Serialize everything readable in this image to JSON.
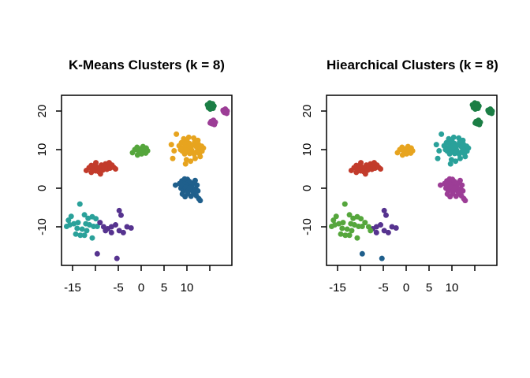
{
  "canvas": {
    "background": "#ffffff"
  },
  "palette": {
    "red": "#c23b2b",
    "blue": "#1f5f8c",
    "green": "#55a63c",
    "magenta": "#9c3d96",
    "gold": "#e7a41f",
    "teal": "#2aa19a",
    "darkgreen": "#1b7e45",
    "indigo": "#56338f"
  },
  "chart_data": {
    "type": "scatter",
    "layout": "two side-by-side scatter plots sharing identical points; colors differ by clustering method; full box frame; ticks on bottom and left only; y tick labels rotated 90",
    "xlim": [
      -17.4,
      19.8
    ],
    "ylim": [
      -20.1,
      24.0
    ],
    "x_ticks": [
      -15,
      -10,
      -5,
      0,
      5,
      10,
      15
    ],
    "x_tick_labels": [
      "-15",
      "",
      "-5",
      "0",
      "5",
      "10",
      ""
    ],
    "y_ticks": [
      -10,
      0,
      10,
      20
    ],
    "y_tick_labels": [
      "-10",
      "0",
      "10",
      "20"
    ],
    "charts": [
      {
        "title": "K-Means Clusters (k = 8)",
        "cluster_field": "km"
      },
      {
        "title": "Hiearchical Clusters (k = 8)",
        "cluster_field": "hc"
      }
    ],
    "clusters": [
      {
        "name": "upper-left-red",
        "km": "red",
        "hc": "red",
        "points": [
          [
            -12.0,
            4.6
          ],
          [
            -11.4,
            5.3
          ],
          [
            -10.9,
            4.1
          ],
          [
            -10.9,
            5.9
          ],
          [
            -10.5,
            5.0
          ],
          [
            -10.2,
            5.9
          ],
          [
            -10.0,
            4.5
          ],
          [
            -9.9,
            6.6
          ],
          [
            -9.6,
            5.4
          ],
          [
            -9.3,
            4.3
          ],
          [
            -9.0,
            5.1
          ],
          [
            -8.9,
            3.7
          ],
          [
            -8.7,
            6.0
          ],
          [
            -8.4,
            4.7
          ],
          [
            -8.1,
            5.5
          ],
          [
            -7.8,
            6.3
          ],
          [
            -7.5,
            4.9
          ],
          [
            -7.2,
            5.7
          ],
          [
            -7.0,
            6.6
          ],
          [
            -6.8,
            5.2
          ],
          [
            -6.4,
            6.0
          ],
          [
            -6.0,
            5.4
          ],
          [
            -5.6,
            5.0
          ]
        ]
      },
      {
        "name": "bottom-left-west",
        "km": "teal",
        "hc": "green",
        "points": [
          [
            -13.4,
            -4.1
          ],
          [
            -15.3,
            -7.3
          ],
          [
            -12.4,
            -6.9
          ],
          [
            -11.6,
            -7.8
          ],
          [
            -10.7,
            -7.4
          ],
          [
            -9.9,
            -7.9
          ],
          [
            -16.3,
            -9.9
          ],
          [
            -15.6,
            -9.5
          ],
          [
            -14.7,
            -9.2
          ],
          [
            -13.8,
            -8.9
          ],
          [
            -12.1,
            -9.2
          ],
          [
            -11.3,
            -9.5
          ],
          [
            -10.4,
            -9.9
          ],
          [
            -9.6,
            -9.9
          ],
          [
            -14.3,
            -11.9
          ],
          [
            -13.3,
            -12.2
          ],
          [
            -12.4,
            -12.2
          ],
          [
            -10.7,
            -12.9
          ],
          [
            -15.9,
            -8.3
          ],
          [
            -12.9,
            -10.6
          ],
          [
            -11.9,
            -11.0
          ],
          [
            -14.0,
            -10.4
          ]
        ]
      },
      {
        "name": "bottom-left-east",
        "km": "indigo",
        "hc": "indigo",
        "points": [
          [
            -4.8,
            -5.8
          ],
          [
            -4.4,
            -7.0
          ],
          [
            -7.3,
            -10.5
          ],
          [
            -6.5,
            -10.0
          ],
          [
            -5.6,
            -9.5
          ],
          [
            -4.8,
            -11.0
          ],
          [
            -3.9,
            -11.5
          ],
          [
            -3.1,
            -10.0
          ],
          [
            -2.2,
            -10.3
          ],
          [
            -6.5,
            -11.5
          ]
        ]
      },
      {
        "name": "bottom-left-boundary",
        "km": "indigo",
        "hc": "green",
        "points": [
          [
            -9.0,
            -8.9
          ],
          [
            -8.2,
            -10.0
          ],
          [
            -7.8,
            -11.0
          ]
        ]
      },
      {
        "name": "bottom-left-outliers",
        "km": "indigo",
        "hc": "blue",
        "points": [
          [
            -9.6,
            -17.0
          ],
          [
            -5.3,
            -18.2
          ]
        ]
      },
      {
        "name": "center-small",
        "km": "green",
        "hc": "gold",
        "points": [
          [
            -1.9,
            9.2
          ],
          [
            -1.4,
            10.0
          ],
          [
            -0.9,
            10.6
          ],
          [
            -0.5,
            9.4
          ],
          [
            -0.1,
            10.2
          ],
          [
            0.4,
            10.8
          ],
          [
            0.6,
            9.8
          ],
          [
            1.1,
            10.4
          ],
          [
            1.4,
            9.7
          ],
          [
            0.1,
            8.9
          ],
          [
            -0.8,
            8.6
          ],
          [
            1.0,
            9.1
          ]
        ]
      },
      {
        "name": "upper-right-large",
        "km": "gold",
        "hc": "teal",
        "points": [
          [
            8.3,
            11.0
          ],
          [
            8.8,
            11.8
          ],
          [
            9.2,
            10.5
          ],
          [
            9.6,
            11.5
          ],
          [
            10.0,
            12.2
          ],
          [
            10.1,
            10.8
          ],
          [
            10.5,
            11.6
          ],
          [
            10.9,
            10.3
          ],
          [
            11.3,
            11.2
          ],
          [
            11.7,
            12.0
          ],
          [
            12.1,
            10.7
          ],
          [
            12.5,
            11.4
          ],
          [
            12.9,
            10.1
          ],
          [
            13.2,
            10.9
          ],
          [
            9.0,
            9.6
          ],
          [
            9.5,
            8.9
          ],
          [
            10.0,
            9.8
          ],
          [
            10.6,
            9.0
          ],
          [
            11.1,
            9.7
          ],
          [
            11.6,
            8.8
          ],
          [
            12.2,
            9.5
          ],
          [
            12.7,
            9.0
          ],
          [
            13.3,
            9.6
          ],
          [
            9.3,
            12.8
          ],
          [
            10.4,
            13.2
          ],
          [
            11.5,
            13.0
          ],
          [
            12.4,
            12.4
          ],
          [
            9.9,
            7.4
          ],
          [
            10.8,
            7.0
          ],
          [
            11.8,
            7.7
          ],
          [
            12.9,
            8.2
          ],
          [
            8.6,
            10.0
          ],
          [
            13.6,
            10.4
          ],
          [
            7.7,
            14.0
          ],
          [
            6.6,
            11.3
          ],
          [
            7.2,
            9.7
          ],
          [
            6.9,
            7.7
          ],
          [
            9.7,
            6.3
          ]
        ]
      },
      {
        "name": "right-middle",
        "km": "blue",
        "hc": "magenta",
        "points": [
          [
            8.4,
            1.2
          ],
          [
            8.9,
            1.9
          ],
          [
            9.3,
            0.8
          ],
          [
            9.7,
            1.6
          ],
          [
            10.1,
            2.3
          ],
          [
            10.2,
            0.9
          ],
          [
            10.6,
            1.7
          ],
          [
            11.0,
            0.4
          ],
          [
            11.4,
            1.3
          ],
          [
            11.8,
            2.0
          ],
          [
            12.2,
            0.8
          ],
          [
            8.7,
            0.0
          ],
          [
            9.2,
            -0.7
          ],
          [
            9.7,
            0.2
          ],
          [
            10.3,
            -0.6
          ],
          [
            10.8,
            0.1
          ],
          [
            11.3,
            -0.8
          ],
          [
            11.9,
            -0.1
          ],
          [
            12.4,
            -0.7
          ],
          [
            9.0,
            -1.5
          ],
          [
            9.6,
            -2.2
          ],
          [
            10.2,
            -1.4
          ],
          [
            10.9,
            -2.1
          ],
          [
            11.5,
            -1.4
          ],
          [
            12.1,
            -2.0
          ],
          [
            12.6,
            -2.7
          ],
          [
            12.9,
            -3.2
          ],
          [
            7.5,
            0.8
          ],
          [
            9.5,
            2.4
          ]
        ]
      },
      {
        "name": "top-right-a",
        "km": "darkgreen",
        "hc": "darkgreen",
        "points": [
          [
            14.5,
            21.6
          ],
          [
            15.0,
            22.1
          ],
          [
            15.6,
            21.9
          ],
          [
            15.9,
            21.3
          ],
          [
            15.3,
            21.2
          ],
          [
            14.7,
            20.9
          ],
          [
            15.1,
            20.5
          ],
          [
            15.7,
            20.7
          ]
        ]
      },
      {
        "name": "top-right-b",
        "km": "magenta",
        "hc": "darkgreen",
        "points": [
          [
            17.9,
            20.2
          ],
          [
            18.4,
            20.5
          ],
          [
            18.8,
            20.0
          ],
          [
            18.2,
            19.6
          ],
          [
            18.7,
            19.4
          ],
          [
            18.0,
            19.9
          ]
        ]
      },
      {
        "name": "top-right-c",
        "km": "magenta",
        "hc": "darkgreen",
        "points": [
          [
            15.3,
            17.3
          ],
          [
            15.8,
            17.6
          ],
          [
            16.2,
            17.1
          ],
          [
            15.5,
            16.7
          ],
          [
            16.0,
            16.5
          ],
          [
            15.1,
            16.9
          ]
        ]
      }
    ]
  }
}
